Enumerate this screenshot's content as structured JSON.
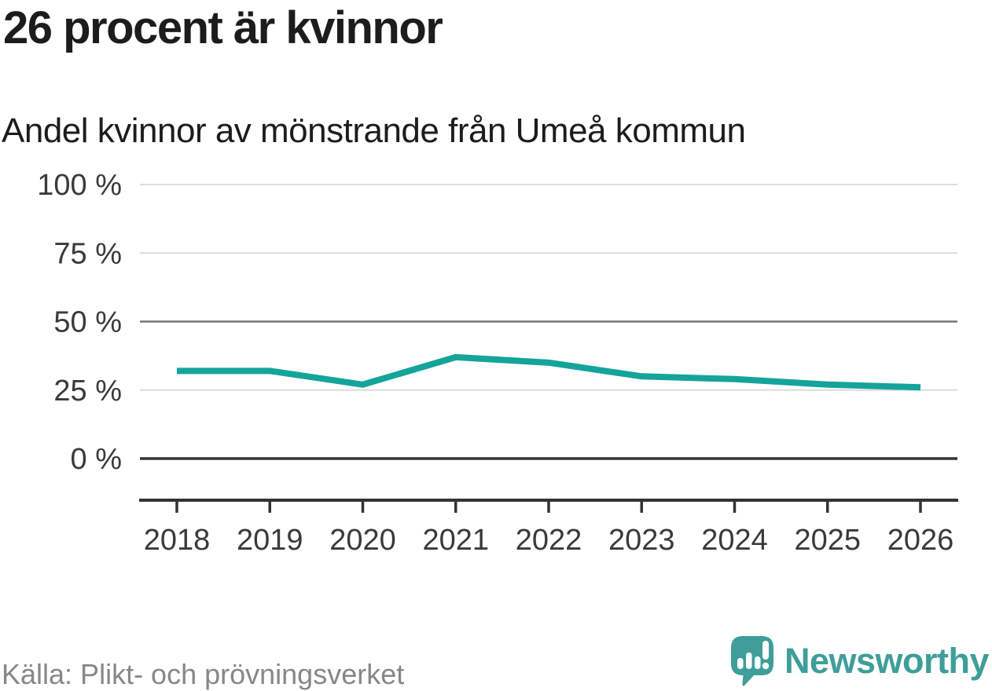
{
  "header": {
    "title": "26 procent är kvinnor",
    "subtitle": "Andel kvinnor av mönstrande från Umeå kommun"
  },
  "footer": {
    "source": "Källa: Plikt- och prövningsverket",
    "brand": "Newsworthy"
  },
  "colors": {
    "line": "#14A49A",
    "grid_light": "#DCDCDC",
    "grid_mid": "#757575",
    "grid_zero": "#333333",
    "axis": "#333333",
    "tick_label": "#3A3A3A",
    "title_text": "#1C1C1C",
    "source_text": "#878787",
    "brand_teal": "#3F9E99"
  },
  "chart_data": {
    "type": "line",
    "title": "26 procent är kvinnor",
    "subtitle": "Andel kvinnor av mönstrande från Umeå kommun",
    "x": [
      2018,
      2019,
      2020,
      2021,
      2022,
      2023,
      2024,
      2025,
      2026
    ],
    "series": [
      {
        "name": "Andel kvinnor av mönstrande",
        "values": [
          32,
          32,
          27,
          37,
          35,
          30,
          29,
          27,
          26
        ]
      }
    ],
    "xlabel": "",
    "ylabel": "",
    "ylim": [
      0,
      100
    ],
    "yticks": [
      0,
      25,
      50,
      75,
      100
    ],
    "ytick_format": "{v} %",
    "grid": "horizontal",
    "legend": "none",
    "line_width": 8,
    "emphasized_gridlines": [
      0,
      50
    ]
  }
}
